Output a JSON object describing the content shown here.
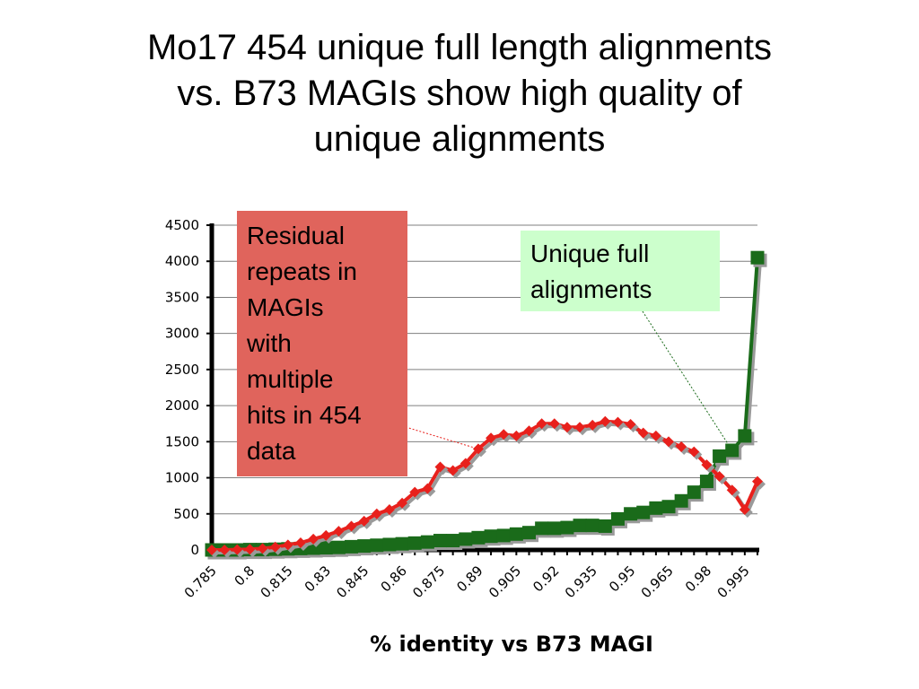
{
  "title_lines": [
    "Mo17 454 unique full length alignments",
    "vs. B73 MAGIs show high quality of",
    "unique alignments"
  ],
  "colors": {
    "red_series": "#e8201c",
    "green_series": "#1a6b1a",
    "red_box": "#e0645c",
    "green_box": "#ccffcc"
  },
  "callouts": {
    "residual_lines": [
      "Residual",
      "repeats in",
      "MAGIs",
      "with",
      "multiple",
      "hits in 454",
      "data"
    ],
    "unique_lines": [
      "Unique full",
      "alignments"
    ]
  },
  "chart_data": {
    "type": "line",
    "xlabel": "% identity vs B73 MAGI",
    "ylabel": "",
    "ylim": [
      0,
      4500
    ],
    "grid": true,
    "x_ticks": [
      "0.785",
      "0.8",
      "0.815",
      "0.83",
      "0.845",
      "0.86",
      "0.875",
      "0.89",
      "0.905",
      "0.92",
      "0.935",
      "0.95",
      "0.965",
      "0.98",
      "0.995"
    ],
    "y_ticks": [
      "0",
      "500",
      "1000",
      "1500",
      "2000",
      "2500",
      "3000",
      "3500",
      "4000",
      "4500"
    ],
    "x": [
      0.785,
      0.79,
      0.795,
      0.8,
      0.805,
      0.81,
      0.815,
      0.82,
      0.825,
      0.83,
      0.835,
      0.84,
      0.845,
      0.85,
      0.855,
      0.86,
      0.865,
      0.87,
      0.875,
      0.88,
      0.885,
      0.89,
      0.895,
      0.9,
      0.905,
      0.91,
      0.915,
      0.92,
      0.925,
      0.93,
      0.935,
      0.94,
      0.945,
      0.95,
      0.955,
      0.96,
      0.965,
      0.97,
      0.975,
      0.98,
      0.985,
      0.99,
      0.995,
      1.0
    ],
    "series": [
      {
        "values": [
          0,
          0,
          5,
          10,
          20,
          40,
          70,
          100,
          150,
          200,
          260,
          330,
          400,
          500,
          560,
          650,
          800,
          850,
          1150,
          1100,
          1200,
          1400,
          1550,
          1600,
          1580,
          1650,
          1750,
          1750,
          1700,
          1700,
          1730,
          1780,
          1770,
          1740,
          1620,
          1580,
          1500,
          1430,
          1360,
          1180,
          1020,
          830,
          560,
          950
        ]
      },
      {
        "values": [
          0,
          0,
          0,
          5,
          5,
          10,
          15,
          20,
          25,
          30,
          35,
          45,
          55,
          65,
          75,
          85,
          95,
          110,
          130,
          130,
          150,
          170,
          190,
          200,
          220,
          240,
          300,
          300,
          310,
          340,
          340,
          330,
          430,
          500,
          520,
          580,
          600,
          680,
          800,
          950,
          1300,
          1380,
          1580,
          4050
        ]
      }
    ]
  }
}
